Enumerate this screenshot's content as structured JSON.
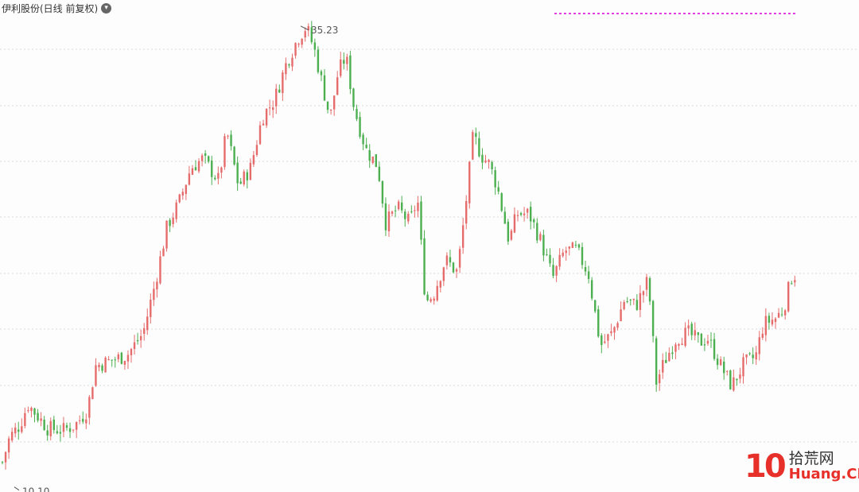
{
  "header": {
    "title": "伊利股份(日线 前复权)",
    "toggle_icon": "chevron-down-icon"
  },
  "watermark": {
    "number": "10",
    "name": "拾荒网",
    "domain": "Huang.CN"
  },
  "colors": {
    "up": "#e66c6c",
    "down": "#4caf50",
    "grid": "#d9d9d9",
    "marker": "#e040e0"
  },
  "chart_data": {
    "type": "candlestick",
    "annotations": {
      "high_label": "35.23",
      "low_label": "10.10"
    },
    "ylim": [
      10,
      36
    ],
    "grid": true,
    "series": [
      {
        "close_path": [
          [
            0,
            11.0
          ],
          [
            12,
            12.8
          ],
          [
            25,
            13.5
          ],
          [
            35,
            14.6
          ],
          [
            45,
            14.1
          ],
          [
            60,
            13.3
          ],
          [
            80,
            13.2
          ],
          [
            95,
            13.5
          ],
          [
            110,
            14.3
          ],
          [
            120,
            16.7
          ],
          [
            140,
            17.0
          ],
          [
            160,
            17.3
          ],
          [
            180,
            18.5
          ],
          [
            195,
            21.2
          ],
          [
            210,
            24.3
          ],
          [
            225,
            25.6
          ],
          [
            240,
            27.5
          ],
          [
            255,
            28.0
          ],
          [
            275,
            26.8
          ],
          [
            285,
            29.5
          ],
          [
            300,
            26.5
          ],
          [
            315,
            27.5
          ],
          [
            330,
            30.3
          ],
          [
            345,
            31.2
          ],
          [
            360,
            33.2
          ],
          [
            375,
            34.6
          ],
          [
            385,
            35.2
          ],
          [
            395,
            34.0
          ],
          [
            405,
            32.1
          ],
          [
            415,
            30.2
          ],
          [
            425,
            32.7
          ],
          [
            435,
            33.6
          ],
          [
            445,
            30.8
          ],
          [
            460,
            28.5
          ],
          [
            475,
            27.6
          ],
          [
            485,
            24.5
          ],
          [
            500,
            25.3
          ],
          [
            515,
            24.5
          ],
          [
            525,
            25.8
          ],
          [
            535,
            20.2
          ],
          [
            545,
            20.6
          ],
          [
            560,
            22.5
          ],
          [
            575,
            21.8
          ],
          [
            585,
            25.3
          ],
          [
            595,
            29.3
          ],
          [
            605,
            28.2
          ],
          [
            615,
            27.7
          ],
          [
            625,
            26.5
          ],
          [
            640,
            23.5
          ],
          [
            650,
            25.0
          ],
          [
            665,
            25.0
          ],
          [
            680,
            23.5
          ],
          [
            695,
            21.5
          ],
          [
            710,
            23.0
          ],
          [
            725,
            23.0
          ],
          [
            740,
            21.7
          ],
          [
            755,
            17.8
          ],
          [
            770,
            18.5
          ],
          [
            785,
            20.3
          ],
          [
            800,
            20.0
          ],
          [
            815,
            21.4
          ],
          [
            825,
            15.8
          ],
          [
            835,
            16.9
          ],
          [
            850,
            18.2
          ],
          [
            865,
            18.5
          ],
          [
            880,
            18.0
          ],
          [
            890,
            18.2
          ],
          [
            905,
            16.8
          ],
          [
            920,
            15.6
          ],
          [
            935,
            16.8
          ],
          [
            950,
            17.2
          ],
          [
            960,
            19.0
          ],
          [
            975,
            19.3
          ],
          [
            985,
            19.8
          ],
          [
            995,
            21.5
          ],
          [
            1003,
            21.8
          ]
        ]
      }
    ]
  }
}
